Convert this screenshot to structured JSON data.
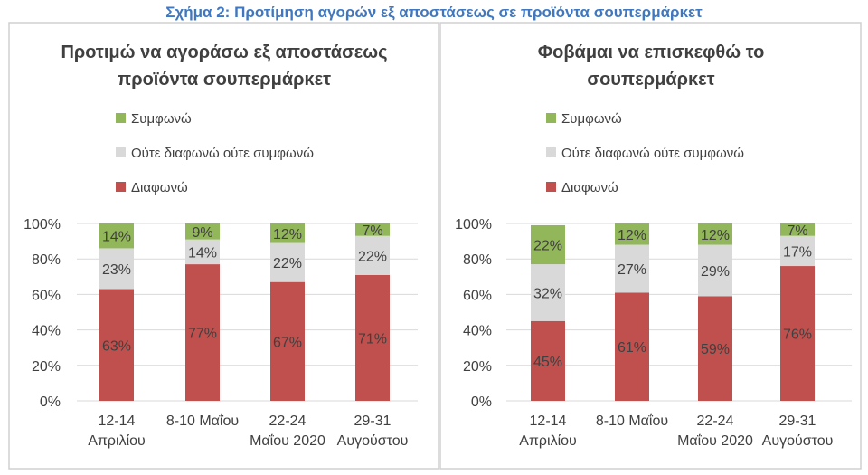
{
  "figure_title": "Σχήμα 2: Προτίμηση αγορών εξ αποστάσεως σε προϊόντα σουπερμάρκετ",
  "colors": {
    "title": "#3f78c0",
    "agree": "#92b65a",
    "neutral": "#d9d9d9",
    "disagree": "#c0504d",
    "text": "#404040",
    "grid": "#d9d9d9"
  },
  "chart_data": [
    {
      "type": "bar",
      "stacked": true,
      "title_lines": [
        "Προτιμώ να αγοράσω εξ αποστάσεως",
        "προϊόντα σουπερμάρκετ"
      ],
      "categories": [
        [
          "12-14",
          "Απριλίου"
        ],
        [
          "8-10 Μαΐου"
        ],
        [
          "22-24",
          "Μαΐου 2020"
        ],
        [
          "29-31",
          "Αυγούστου"
        ]
      ],
      "series": [
        {
          "name": "Διαφωνώ",
          "values": [
            63,
            77,
            67,
            71
          ]
        },
        {
          "name": "Ούτε διαφωνώ ούτε συμφωνώ",
          "values": [
            23,
            14,
            22,
            22
          ]
        },
        {
          "name": "Συμφωνώ",
          "values": [
            14,
            9,
            12,
            7
          ]
        }
      ],
      "legend_order": [
        "Συμφωνώ",
        "Ούτε διαφωνώ ούτε συμφωνώ",
        "Διαφωνώ"
      ],
      "legend_placement": "top-left",
      "ylim": [
        0,
        100
      ],
      "yticks": [
        "0%",
        "20%",
        "40%",
        "60%",
        "80%",
        "100%"
      ],
      "grid": true
    },
    {
      "type": "bar",
      "stacked": true,
      "title_lines": [
        "Φοβάμαι να επισκεφθώ το",
        "σουπερμάρκετ"
      ],
      "categories": [
        [
          "12-14",
          "Απριλίου"
        ],
        [
          "8-10 Μαΐου"
        ],
        [
          "22-24",
          "Μαΐου 2020"
        ],
        [
          "29-31",
          "Αυγούστου"
        ]
      ],
      "series": [
        {
          "name": "Διαφωνώ",
          "values": [
            45,
            61,
            59,
            76
          ]
        },
        {
          "name": "Ούτε διαφωνώ ούτε συμφωνώ",
          "values": [
            32,
            27,
            29,
            17
          ]
        },
        {
          "name": "Συμφωνώ",
          "values": [
            22,
            12,
            12,
            7
          ]
        }
      ],
      "legend_order": [
        "Συμφωνώ",
        "Ούτε διαφωνώ ούτε συμφωνώ",
        "Διαφωνώ"
      ],
      "legend_placement": "top-left",
      "ylim": [
        0,
        100
      ],
      "yticks": [
        "0%",
        "20%",
        "40%",
        "60%",
        "80%",
        "100%"
      ],
      "grid": true
    }
  ]
}
